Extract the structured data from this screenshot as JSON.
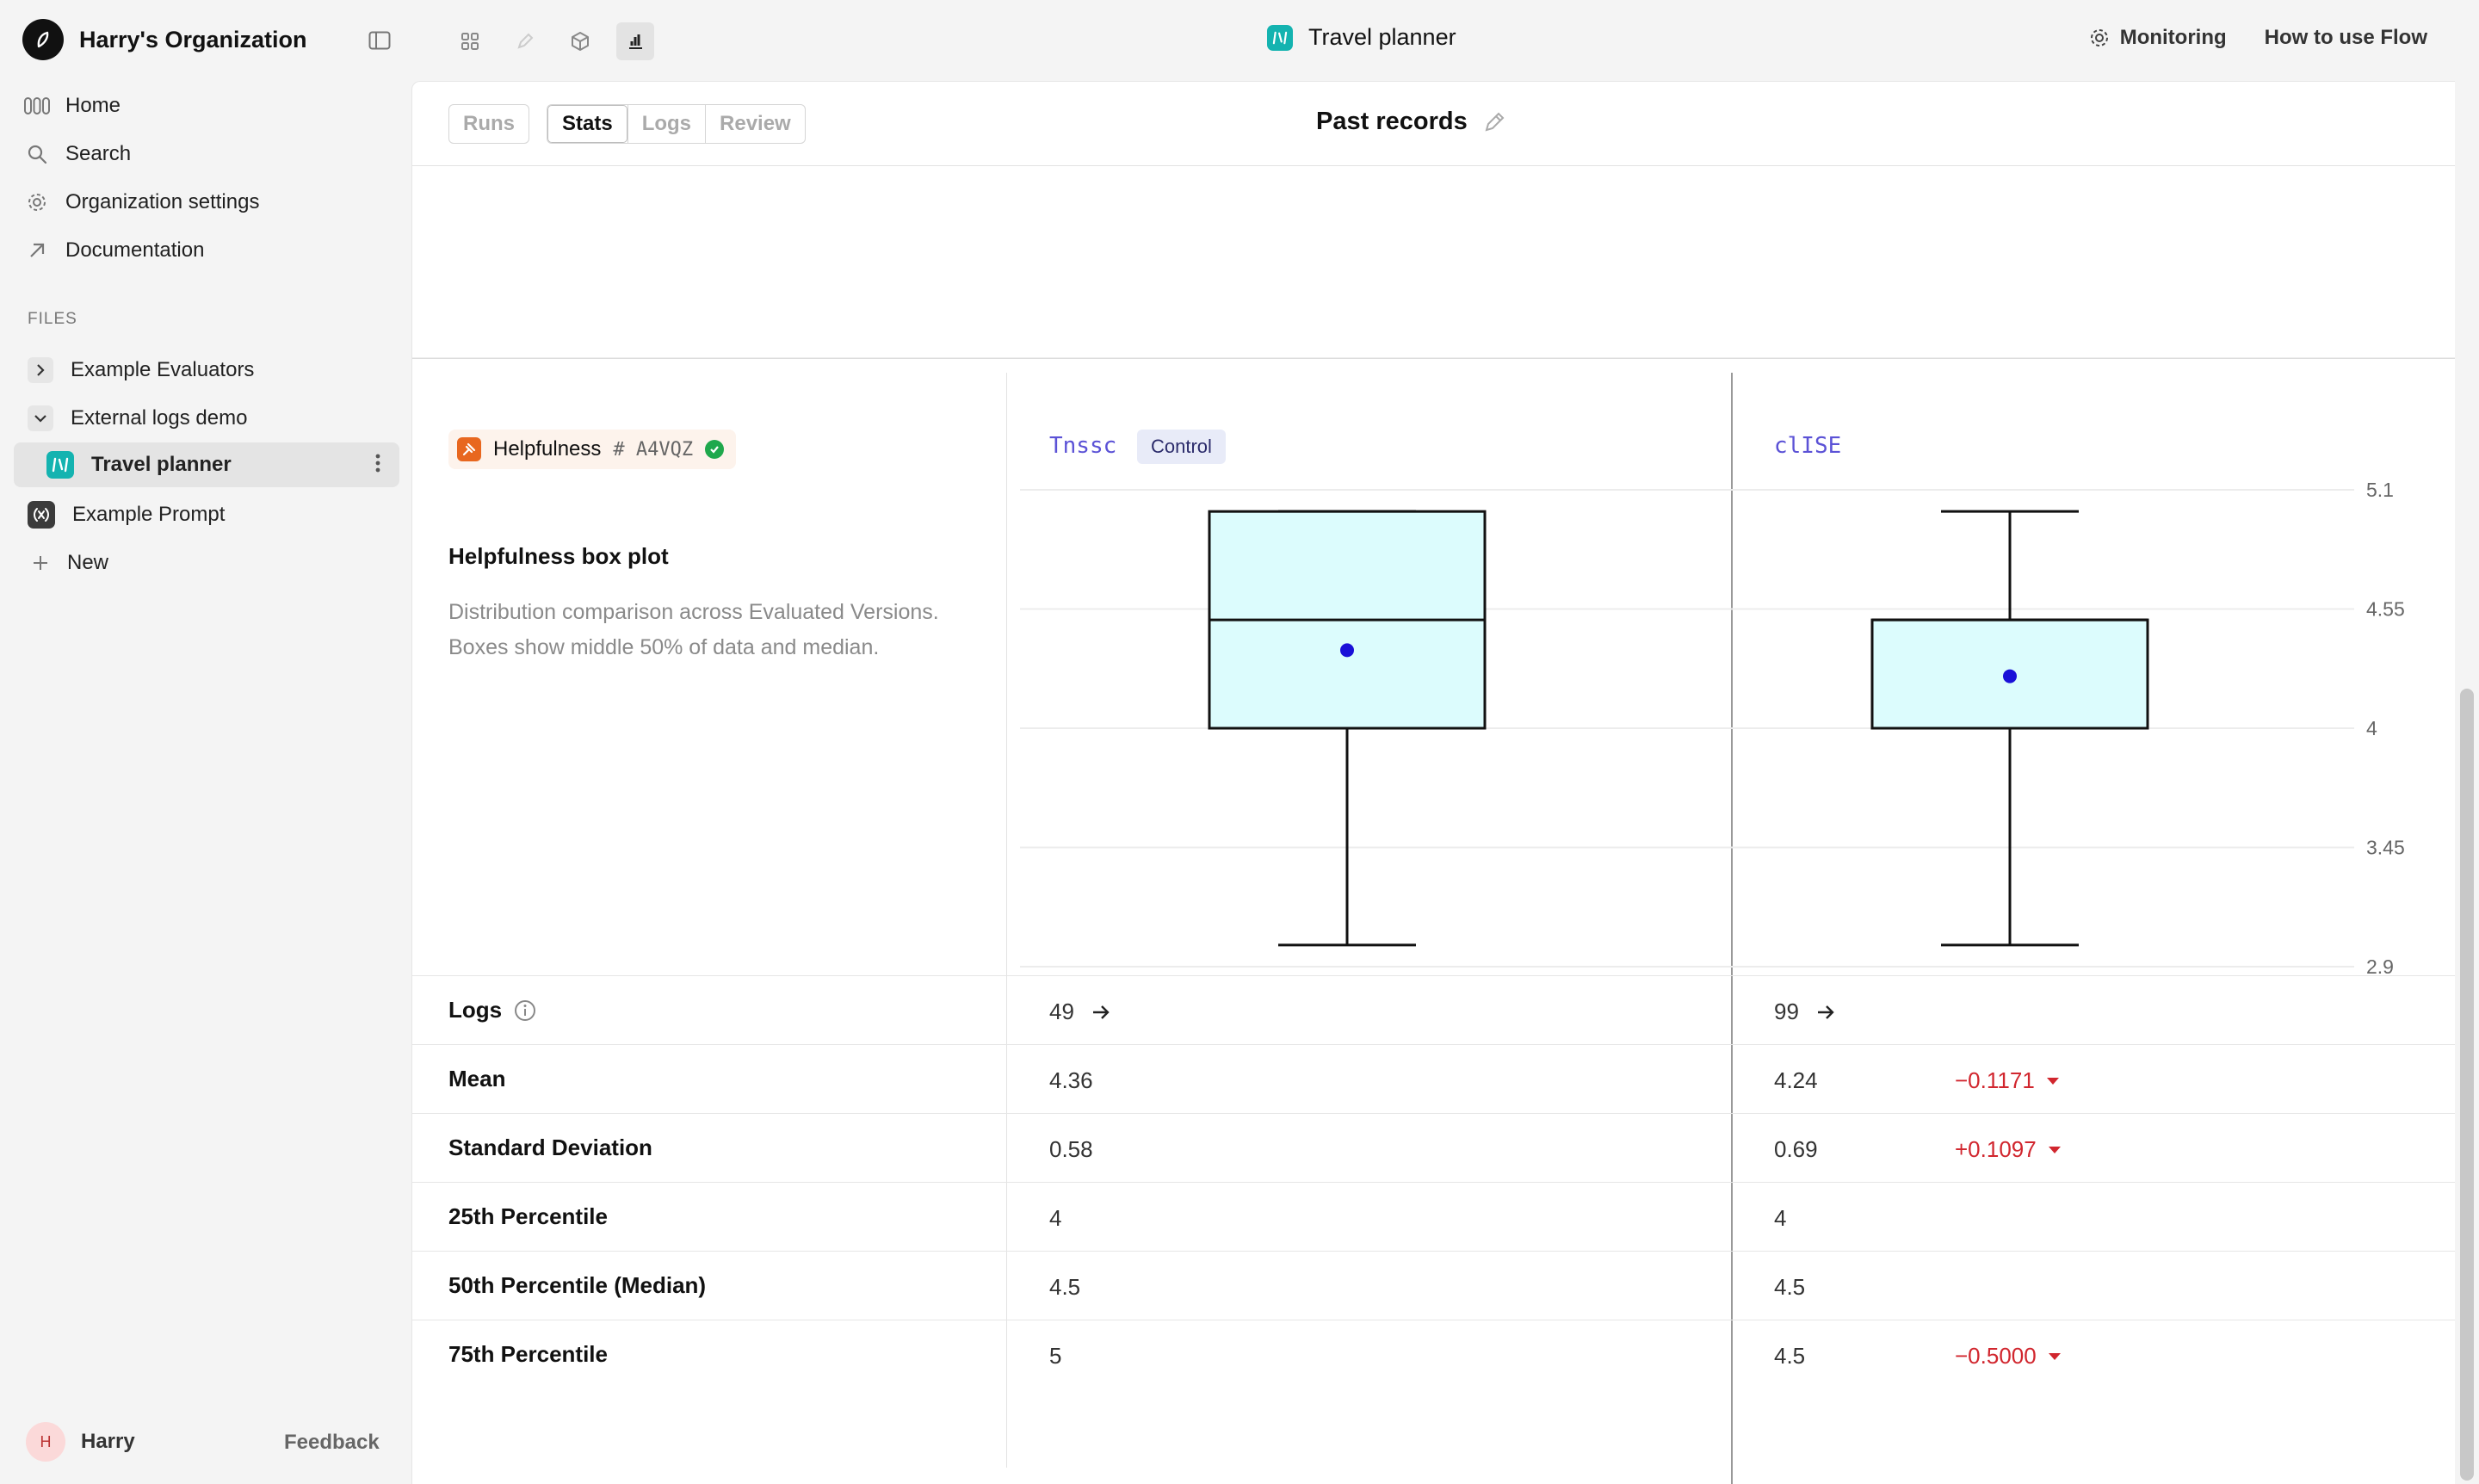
{
  "sidebar": {
    "org_name": "Harry's Organization",
    "nav": [
      {
        "label": "Home",
        "icon": "home-icon"
      },
      {
        "label": "Search",
        "icon": "search-icon"
      },
      {
        "label": "Organization settings",
        "icon": "gear-icon"
      },
      {
        "label": "Documentation",
        "icon": "arrow-up-right-icon"
      }
    ],
    "files_label": "FILES",
    "tree": [
      {
        "label": "Example Evaluators",
        "expanded": false
      },
      {
        "label": "External logs demo",
        "expanded": true
      },
      {
        "label": "Travel planner",
        "active": true
      },
      {
        "label": "Example Prompt"
      },
      {
        "label": "New"
      }
    ],
    "user": {
      "initial": "H",
      "name": "Harry"
    },
    "feedback_label": "Feedback"
  },
  "topbar": {
    "file_title": "Travel planner",
    "monitoring_label": "Monitoring",
    "how_to_label": "How to use Flow"
  },
  "tabs": {
    "left": [
      "Runs"
    ],
    "right": [
      "Stats",
      "Logs",
      "Review"
    ],
    "active": "Stats"
  },
  "page_title": "Past records",
  "evaluator": {
    "name": "Helpfulness",
    "id": "A4VQZ",
    "status": "passed"
  },
  "versions": [
    {
      "name": "Tnssc",
      "badge": "Control"
    },
    {
      "name": "clISE",
      "badge": ""
    }
  ],
  "plot": {
    "title": "Helpfulness box plot",
    "description": "Distribution comparison across Evaluated Versions. Boxes show middle 50% of data and median."
  },
  "chart_data": {
    "type": "box",
    "ylim": [
      2.9,
      5.1
    ],
    "yticks": [
      "5.1",
      "4.55",
      "4",
      "3.45",
      "2.9"
    ],
    "series": [
      {
        "name": "Tnssc",
        "min": 3,
        "q1": 4,
        "median": 4.5,
        "q3": 5,
        "max": 5,
        "mean": 4.36
      },
      {
        "name": "clISE",
        "min": 3,
        "q1": 4,
        "median": 4.5,
        "q3": 4.5,
        "max": 5,
        "mean": 4.24
      }
    ],
    "colors": {
      "box_fill": "#dcfcfd",
      "stroke": "#111111",
      "mean_dot": "#1a10d8"
    }
  },
  "stats": [
    {
      "label": "Logs",
      "info": true,
      "values": [
        "49",
        "99"
      ],
      "link": true,
      "diff": ""
    },
    {
      "label": "Mean",
      "values": [
        "4.36",
        "4.24"
      ],
      "diff": "−0.1171"
    },
    {
      "label": "Standard Deviation",
      "values": [
        "0.58",
        "0.69"
      ],
      "diff": "+0.1097"
    },
    {
      "label": "25th Percentile",
      "values": [
        "4",
        "4"
      ],
      "diff": ""
    },
    {
      "label": "50th Percentile (Median)",
      "values": [
        "4.5",
        "4.5"
      ],
      "diff": ""
    },
    {
      "label": "75th Percentile",
      "values": [
        "5",
        "4.5"
      ],
      "diff": "−0.5000"
    }
  ]
}
